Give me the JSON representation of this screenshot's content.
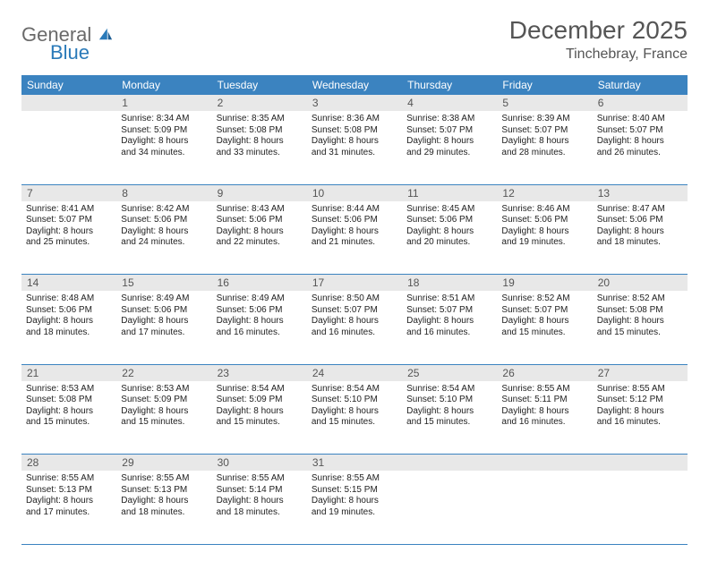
{
  "logo": {
    "text1": "General",
    "text2": "Blue"
  },
  "title": "December 2025",
  "location": "Tinchebray, France",
  "colors": {
    "header_bg": "#3b83c0",
    "header_text": "#ffffff",
    "daynum_bg": "#e8e8e8",
    "border": "#3b83c0",
    "logo_gray": "#6a6a6a",
    "logo_blue": "#2a7ab9"
  },
  "fonts": {
    "title_size": 28,
    "location_size": 16,
    "dow_size": 12,
    "daynum_size": 12,
    "body_size": 10
  },
  "dow": [
    "Sunday",
    "Monday",
    "Tuesday",
    "Wednesday",
    "Thursday",
    "Friday",
    "Saturday"
  ],
  "weeks": [
    [
      {
        "n": "",
        "l1": "",
        "l2": "",
        "l3": "",
        "l4": ""
      },
      {
        "n": "1",
        "l1": "Sunrise: 8:34 AM",
        "l2": "Sunset: 5:09 PM",
        "l3": "Daylight: 8 hours",
        "l4": "and 34 minutes."
      },
      {
        "n": "2",
        "l1": "Sunrise: 8:35 AM",
        "l2": "Sunset: 5:08 PM",
        "l3": "Daylight: 8 hours",
        "l4": "and 33 minutes."
      },
      {
        "n": "3",
        "l1": "Sunrise: 8:36 AM",
        "l2": "Sunset: 5:08 PM",
        "l3": "Daylight: 8 hours",
        "l4": "and 31 minutes."
      },
      {
        "n": "4",
        "l1": "Sunrise: 8:38 AM",
        "l2": "Sunset: 5:07 PM",
        "l3": "Daylight: 8 hours",
        "l4": "and 29 minutes."
      },
      {
        "n": "5",
        "l1": "Sunrise: 8:39 AM",
        "l2": "Sunset: 5:07 PM",
        "l3": "Daylight: 8 hours",
        "l4": "and 28 minutes."
      },
      {
        "n": "6",
        "l1": "Sunrise: 8:40 AM",
        "l2": "Sunset: 5:07 PM",
        "l3": "Daylight: 8 hours",
        "l4": "and 26 minutes."
      }
    ],
    [
      {
        "n": "7",
        "l1": "Sunrise: 8:41 AM",
        "l2": "Sunset: 5:07 PM",
        "l3": "Daylight: 8 hours",
        "l4": "and 25 minutes."
      },
      {
        "n": "8",
        "l1": "Sunrise: 8:42 AM",
        "l2": "Sunset: 5:06 PM",
        "l3": "Daylight: 8 hours",
        "l4": "and 24 minutes."
      },
      {
        "n": "9",
        "l1": "Sunrise: 8:43 AM",
        "l2": "Sunset: 5:06 PM",
        "l3": "Daylight: 8 hours",
        "l4": "and 22 minutes."
      },
      {
        "n": "10",
        "l1": "Sunrise: 8:44 AM",
        "l2": "Sunset: 5:06 PM",
        "l3": "Daylight: 8 hours",
        "l4": "and 21 minutes."
      },
      {
        "n": "11",
        "l1": "Sunrise: 8:45 AM",
        "l2": "Sunset: 5:06 PM",
        "l3": "Daylight: 8 hours",
        "l4": "and 20 minutes."
      },
      {
        "n": "12",
        "l1": "Sunrise: 8:46 AM",
        "l2": "Sunset: 5:06 PM",
        "l3": "Daylight: 8 hours",
        "l4": "and 19 minutes."
      },
      {
        "n": "13",
        "l1": "Sunrise: 8:47 AM",
        "l2": "Sunset: 5:06 PM",
        "l3": "Daylight: 8 hours",
        "l4": "and 18 minutes."
      }
    ],
    [
      {
        "n": "14",
        "l1": "Sunrise: 8:48 AM",
        "l2": "Sunset: 5:06 PM",
        "l3": "Daylight: 8 hours",
        "l4": "and 18 minutes."
      },
      {
        "n": "15",
        "l1": "Sunrise: 8:49 AM",
        "l2": "Sunset: 5:06 PM",
        "l3": "Daylight: 8 hours",
        "l4": "and 17 minutes."
      },
      {
        "n": "16",
        "l1": "Sunrise: 8:49 AM",
        "l2": "Sunset: 5:06 PM",
        "l3": "Daylight: 8 hours",
        "l4": "and 16 minutes."
      },
      {
        "n": "17",
        "l1": "Sunrise: 8:50 AM",
        "l2": "Sunset: 5:07 PM",
        "l3": "Daylight: 8 hours",
        "l4": "and 16 minutes."
      },
      {
        "n": "18",
        "l1": "Sunrise: 8:51 AM",
        "l2": "Sunset: 5:07 PM",
        "l3": "Daylight: 8 hours",
        "l4": "and 16 minutes."
      },
      {
        "n": "19",
        "l1": "Sunrise: 8:52 AM",
        "l2": "Sunset: 5:07 PM",
        "l3": "Daylight: 8 hours",
        "l4": "and 15 minutes."
      },
      {
        "n": "20",
        "l1": "Sunrise: 8:52 AM",
        "l2": "Sunset: 5:08 PM",
        "l3": "Daylight: 8 hours",
        "l4": "and 15 minutes."
      }
    ],
    [
      {
        "n": "21",
        "l1": "Sunrise: 8:53 AM",
        "l2": "Sunset: 5:08 PM",
        "l3": "Daylight: 8 hours",
        "l4": "and 15 minutes."
      },
      {
        "n": "22",
        "l1": "Sunrise: 8:53 AM",
        "l2": "Sunset: 5:09 PM",
        "l3": "Daylight: 8 hours",
        "l4": "and 15 minutes."
      },
      {
        "n": "23",
        "l1": "Sunrise: 8:54 AM",
        "l2": "Sunset: 5:09 PM",
        "l3": "Daylight: 8 hours",
        "l4": "and 15 minutes."
      },
      {
        "n": "24",
        "l1": "Sunrise: 8:54 AM",
        "l2": "Sunset: 5:10 PM",
        "l3": "Daylight: 8 hours",
        "l4": "and 15 minutes."
      },
      {
        "n": "25",
        "l1": "Sunrise: 8:54 AM",
        "l2": "Sunset: 5:10 PM",
        "l3": "Daylight: 8 hours",
        "l4": "and 15 minutes."
      },
      {
        "n": "26",
        "l1": "Sunrise: 8:55 AM",
        "l2": "Sunset: 5:11 PM",
        "l3": "Daylight: 8 hours",
        "l4": "and 16 minutes."
      },
      {
        "n": "27",
        "l1": "Sunrise: 8:55 AM",
        "l2": "Sunset: 5:12 PM",
        "l3": "Daylight: 8 hours",
        "l4": "and 16 minutes."
      }
    ],
    [
      {
        "n": "28",
        "l1": "Sunrise: 8:55 AM",
        "l2": "Sunset: 5:13 PM",
        "l3": "Daylight: 8 hours",
        "l4": "and 17 minutes."
      },
      {
        "n": "29",
        "l1": "Sunrise: 8:55 AM",
        "l2": "Sunset: 5:13 PM",
        "l3": "Daylight: 8 hours",
        "l4": "and 18 minutes."
      },
      {
        "n": "30",
        "l1": "Sunrise: 8:55 AM",
        "l2": "Sunset: 5:14 PM",
        "l3": "Daylight: 8 hours",
        "l4": "and 18 minutes."
      },
      {
        "n": "31",
        "l1": "Sunrise: 8:55 AM",
        "l2": "Sunset: 5:15 PM",
        "l3": "Daylight: 8 hours",
        "l4": "and 19 minutes."
      },
      {
        "n": "",
        "l1": "",
        "l2": "",
        "l3": "",
        "l4": ""
      },
      {
        "n": "",
        "l1": "",
        "l2": "",
        "l3": "",
        "l4": ""
      },
      {
        "n": "",
        "l1": "",
        "l2": "",
        "l3": "",
        "l4": ""
      }
    ]
  ]
}
